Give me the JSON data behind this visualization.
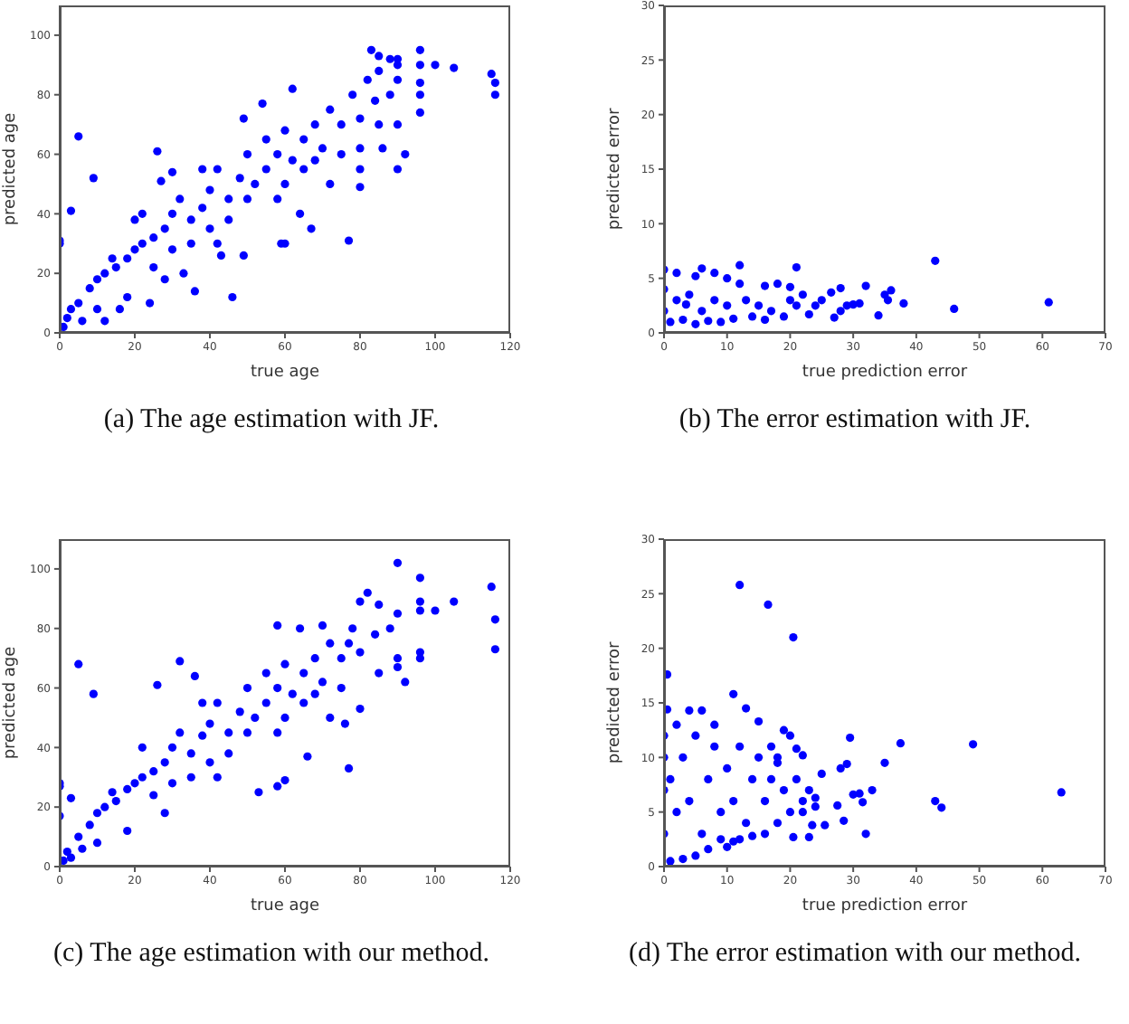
{
  "chart_data": [
    {
      "type": "scatter",
      "xlabel": "true age",
      "ylabel": "predicted age",
      "annotations": [
        "(a) The age estimation with JF."
      ],
      "color": "#0000ff",
      "marker": "circle",
      "xlim": [
        0,
        120
      ],
      "ylim": [
        0,
        110
      ],
      "xticks": [
        0,
        20,
        40,
        60,
        80,
        100,
        120
      ],
      "yticks": [
        0,
        20,
        40,
        60,
        80,
        100
      ],
      "x": [
        5,
        9,
        3,
        0,
        0,
        26,
        46,
        36,
        77,
        67,
        80,
        80,
        90,
        92,
        96,
        96,
        96,
        96,
        96,
        100,
        105,
        115,
        116,
        116,
        83,
        85,
        90,
        90,
        88,
        86,
        62,
        54,
        49,
        64,
        59,
        60,
        43,
        49,
        24,
        12,
        16,
        20,
        27,
        30,
        1,
        2,
        3,
        5,
        6,
        8,
        10,
        12,
        15,
        18,
        20,
        22,
        25,
        25,
        28,
        30,
        30,
        32,
        35,
        35,
        38,
        40,
        40,
        42,
        45,
        45,
        48,
        50,
        50,
        52,
        55,
        55,
        58,
        60,
        60,
        62,
        65,
        65,
        68,
        70,
        72,
        75,
        75,
        78,
        80,
        82,
        84,
        85,
        85,
        88,
        90,
        90,
        38,
        33,
        22,
        18,
        14,
        10,
        28,
        42,
        58,
        68,
        72,
        80
      ],
      "values": [
        66,
        52,
        41,
        31,
        30,
        61,
        12,
        14,
        31,
        35,
        49,
        55,
        55,
        60,
        74,
        80,
        84,
        90,
        95,
        90,
        89,
        87,
        84,
        80,
        95,
        93,
        90,
        92,
        92,
        62,
        82,
        77,
        72,
        40,
        30,
        30,
        26,
        26,
        10,
        4,
        8,
        38,
        51,
        54,
        2,
        5,
        8,
        10,
        4,
        15,
        18,
        20,
        22,
        25,
        28,
        30,
        32,
        22,
        35,
        40,
        28,
        45,
        38,
        30,
        42,
        48,
        35,
        55,
        45,
        38,
        52,
        60,
        45,
        50,
        55,
        65,
        60,
        68,
        50,
        58,
        65,
        55,
        70,
        62,
        75,
        70,
        60,
        80,
        72,
        85,
        78,
        88,
        70,
        80,
        85,
        70,
        55,
        20,
        40,
        12,
        25,
        8,
        18,
        30,
        45,
        58,
        50,
        62
      ]
    },
    {
      "type": "scatter",
      "xlabel": "true prediction error",
      "ylabel": "predicted error",
      "annotations": [
        "(b) The error estimation with JF."
      ],
      "color": "#0000ff",
      "marker": "circle",
      "xlim": [
        0,
        70
      ],
      "ylim": [
        0,
        30
      ],
      "xticks": [
        0,
        10,
        20,
        30,
        40,
        50,
        60,
        70
      ],
      "yticks": [
        0,
        5,
        10,
        15,
        20,
        25,
        30
      ],
      "x": [
        0,
        6,
        12,
        21,
        43,
        46,
        61,
        38,
        36,
        35,
        35.5,
        34,
        32,
        31,
        30,
        29,
        28,
        27,
        28,
        26.5,
        25,
        24,
        23,
        22,
        20,
        18,
        16,
        15,
        14,
        12,
        10,
        8,
        5,
        2,
        1,
        3,
        5,
        7,
        9,
        11,
        13,
        17,
        19,
        21,
        2,
        4,
        6,
        8,
        10,
        0,
        0,
        3.5,
        16,
        20
      ],
      "values": [
        5.8,
        5.9,
        6.2,
        6,
        6.6,
        2.2,
        2.8,
        2.7,
        3.9,
        3.5,
        3,
        1.6,
        4.3,
        2.7,
        2.6,
        2.5,
        2,
        1.4,
        4.1,
        3.7,
        3,
        2.5,
        1.7,
        3.5,
        4.2,
        4.5,
        4.3,
        2.5,
        1.5,
        4.5,
        5,
        5.5,
        5.2,
        5.5,
        1,
        1.2,
        0.8,
        1.1,
        1,
        1.3,
        3,
        2,
        1.5,
        2.5,
        3,
        3.5,
        2,
        3,
        2.5,
        2,
        4,
        2.6,
        1.2,
        3
      ]
    },
    {
      "type": "scatter",
      "xlabel": "true age",
      "ylabel": "predicted age",
      "annotations": [
        "(c) The age estimation with our method."
      ],
      "color": "#0000ff",
      "marker": "circle",
      "xlim": [
        0,
        120
      ],
      "ylim": [
        0,
        110
      ],
      "xticks": [
        0,
        20,
        40,
        60,
        80,
        100,
        120
      ],
      "yticks": [
        0,
        20,
        40,
        60,
        80,
        100
      ],
      "x": [
        5,
        9,
        32,
        36,
        26,
        0,
        0,
        0,
        3,
        77,
        66,
        53,
        58,
        60,
        90,
        96,
        96,
        96,
        100,
        105,
        115,
        116,
        116,
        96,
        96,
        92,
        90,
        90,
        82,
        80,
        58,
        64,
        70,
        85,
        77,
        80,
        76,
        1,
        2,
        3,
        5,
        6,
        8,
        10,
        12,
        15,
        18,
        20,
        22,
        25,
        25,
        28,
        30,
        30,
        32,
        35,
        35,
        38,
        40,
        40,
        42,
        45,
        45,
        48,
        50,
        50,
        52,
        55,
        55,
        58,
        60,
        60,
        62,
        65,
        65,
        68,
        70,
        72,
        75,
        75,
        78,
        80,
        84,
        85,
        88,
        90,
        38,
        22,
        18,
        14,
        10,
        28,
        42,
        58,
        68,
        72
      ],
      "values": [
        68,
        58,
        69,
        64,
        61,
        28,
        27,
        17,
        23,
        33,
        37,
        25,
        27,
        29,
        102,
        97,
        89,
        86,
        86,
        89,
        94,
        83,
        73,
        72,
        70,
        62,
        67,
        70,
        92,
        89,
        81,
        80,
        81,
        65,
        75,
        53,
        48,
        2,
        5,
        3,
        10,
        6,
        14,
        18,
        20,
        22,
        26,
        28,
        30,
        32,
        24,
        35,
        40,
        28,
        45,
        38,
        30,
        44,
        48,
        35,
        55,
        45,
        38,
        52,
        60,
        45,
        50,
        55,
        65,
        60,
        68,
        50,
        58,
        65,
        55,
        70,
        62,
        75,
        70,
        60,
        80,
        72,
        78,
        88,
        80,
        85,
        55,
        40,
        12,
        25,
        8,
        18,
        30,
        45,
        58,
        50
      ]
    },
    {
      "type": "scatter",
      "xlabel": "true prediction error",
      "ylabel": "predicted error",
      "annotations": [
        "(d) The error estimation with our method."
      ],
      "color": "#0000ff",
      "marker": "circle",
      "xlim": [
        0,
        70
      ],
      "ylim": [
        0,
        30
      ],
      "xticks": [
        0,
        10,
        20,
        30,
        40,
        50,
        60,
        70
      ],
      "yticks": [
        0,
        5,
        10,
        15,
        20,
        25,
        30
      ],
      "x": [
        12,
        16.5,
        20.5,
        0.5,
        0.5,
        4,
        6,
        11,
        13,
        15,
        19,
        20,
        22,
        21,
        29.5,
        37.5,
        49,
        63,
        43,
        44,
        33,
        31,
        30,
        31.5,
        32,
        28.5,
        28,
        29,
        35,
        27.5,
        25,
        25.5,
        23.5,
        23,
        20.5,
        24,
        22,
        18,
        16,
        14,
        12,
        10,
        7,
        5,
        3,
        1,
        0,
        0,
        0,
        0,
        1,
        2,
        3,
        4,
        5,
        6,
        7,
        8,
        9,
        10,
        11,
        12,
        13,
        14,
        15,
        16,
        17,
        18,
        19,
        20,
        21,
        22,
        23,
        24,
        2,
        8,
        9,
        11,
        17,
        18
      ],
      "values": [
        25.8,
        24,
        21,
        17.6,
        14.4,
        14.3,
        14.3,
        15.8,
        14.5,
        13.3,
        12.5,
        12,
        10.2,
        10.8,
        11.8,
        11.3,
        11.2,
        6.8,
        6,
        5.4,
        7,
        6.7,
        6.6,
        5.9,
        3,
        4.2,
        9,
        9.4,
        9.5,
        5.6,
        8.5,
        3.8,
        3.8,
        2.7,
        2.7,
        6.3,
        5,
        4,
        3,
        2.8,
        2.5,
        1.8,
        1.6,
        1,
        0.7,
        0.5,
        3,
        7,
        10,
        12,
        8,
        5,
        10,
        6,
        12,
        3,
        8,
        11,
        5,
        9,
        6,
        11,
        4,
        8,
        10,
        6,
        8,
        10,
        7,
        5,
        8,
        6,
        7,
        5.5,
        13,
        13,
        2.5,
        2.3,
        11,
        9.5
      ]
    }
  ]
}
